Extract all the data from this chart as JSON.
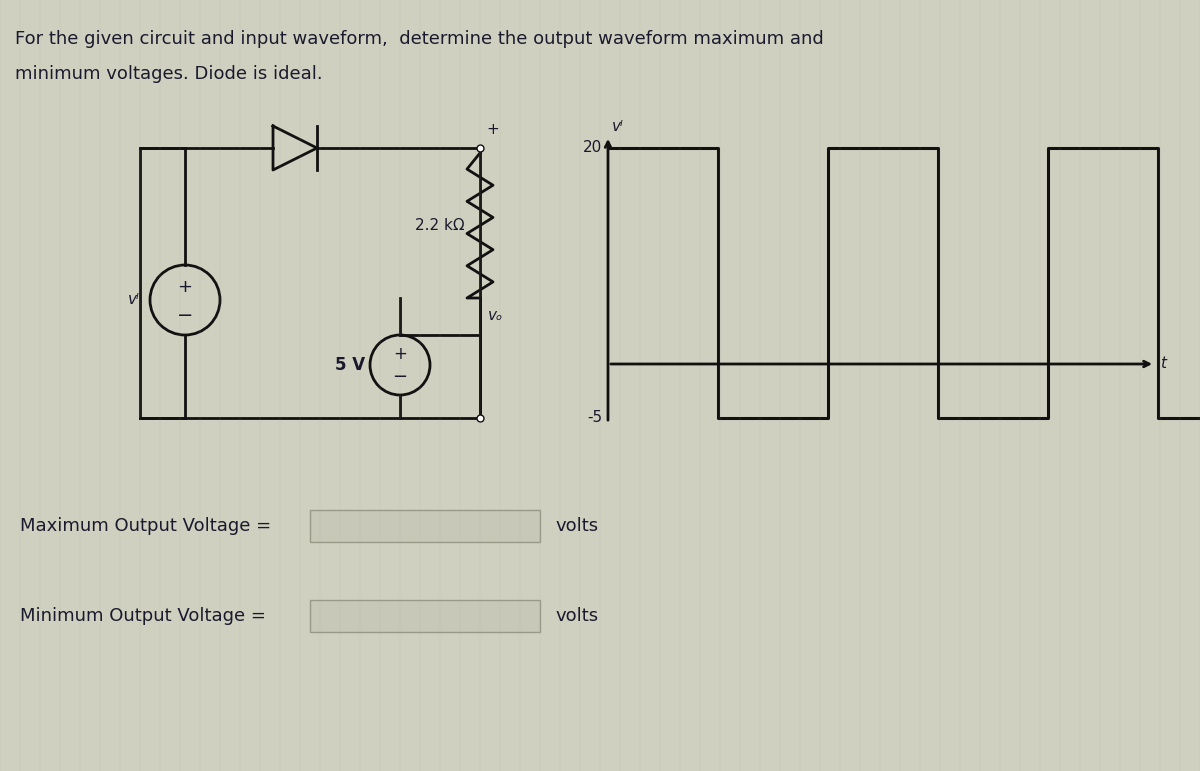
{
  "title_line1": "For the given circuit and input waveform,  determine the output waveform maximum and",
  "title_line2": "minimum voltages. Diode is ideal.",
  "resistor_label": "2.2 kΩ",
  "voltage_source_label": "5 V",
  "vi_label": "vᴵ",
  "vo_label": "vₒ",
  "waveform_high": 20,
  "waveform_low": -5,
  "waveform_label_high": "20",
  "waveform_label_low": "-5",
  "waveform_vi_label": "vᴵ",
  "waveform_t_label": "t",
  "max_voltage_label": "Maximum Output Voltage =",
  "min_voltage_label": "Minimum Output Voltage =",
  "volts_label1": "volts",
  "volts_label2": "volts",
  "bg_color": "#d0d0c0",
  "line_color": "#111111",
  "text_color": "#1a1a2e"
}
